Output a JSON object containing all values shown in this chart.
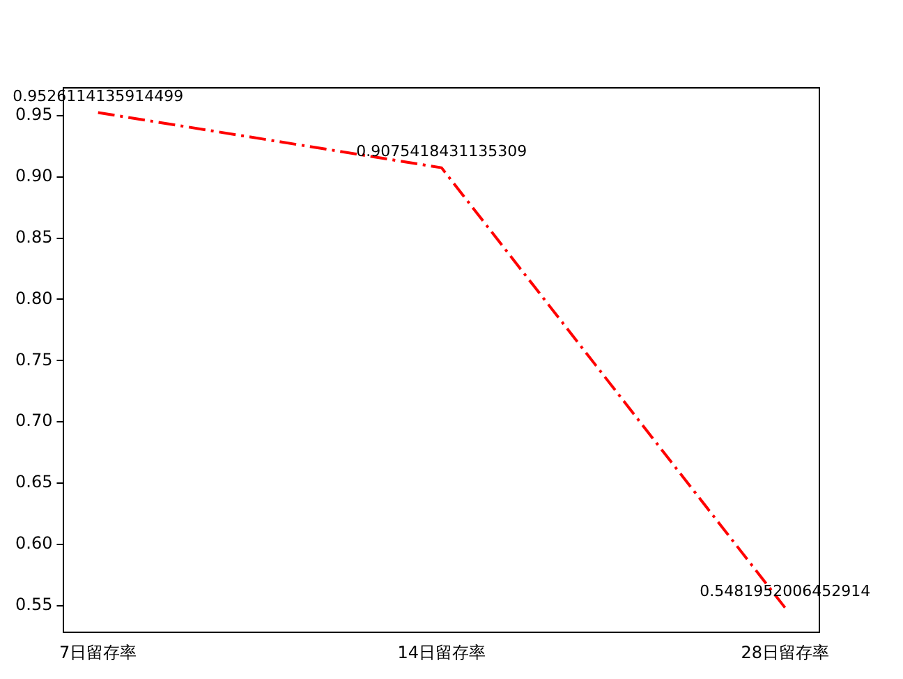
{
  "chart_data": {
    "type": "line",
    "categories": [
      "7日留存率",
      "14日留存率",
      "28日留存率"
    ],
    "series": [
      {
        "color": "#ff0000",
        "values": [
          0.9526114135914499,
          0.9075418431135309,
          0.5481952006452914
        ]
      }
    ],
    "ylim": [
      0.528,
      0.9728
    ],
    "yticks": [
      0.55,
      {
        "value": 0.6,
        "label": "0.60"
      },
      0.65,
      {
        "value": 0.7,
        "label": "0.70"
      },
      0.75,
      {
        "value": 0.8,
        "label": "0.80"
      },
      0.85,
      {
        "value": 0.9,
        "label": "0.90"
      },
      0.95
    ],
    "line_style": "dashed",
    "marker": "none",
    "grid": false,
    "legend": false,
    "data_labels": true
  }
}
